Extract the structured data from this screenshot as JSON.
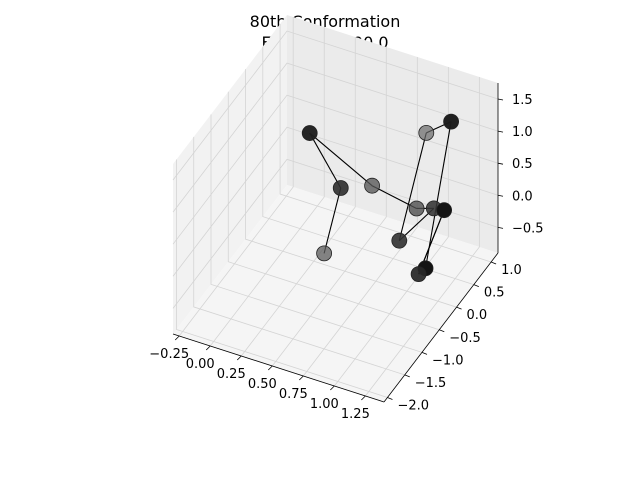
{
  "chart_data": {
    "type": "scatter",
    "projection": "3d",
    "title": "80th Conformation",
    "subtitle": "Energy: -1000.0",
    "grid": true,
    "x_ticks": [
      "−0.25",
      "0.00",
      "0.25",
      "0.50",
      "0.75",
      "1.00",
      "1.25"
    ],
    "y_ticks": [
      "−2.0",
      "−1.5",
      "−1.0",
      "−0.5",
      "0.0",
      "0.5",
      "1.0"
    ],
    "z_ticks": [
      "−0.5",
      "0.0",
      "0.5",
      "1.0",
      "1.5"
    ],
    "xlim": [
      -0.3,
      1.4
    ],
    "ylim": [
      -2.1,
      1.2
    ],
    "zlim": [
      -0.9,
      1.75
    ],
    "marker_color": "#000000",
    "line_color": "#000000",
    "points": [
      {
        "x": 0.5,
        "y": -0.6,
        "z": -0.2,
        "shade": 0.45
      },
      {
        "x": 0.3,
        "y": 0.6,
        "z": -0.15,
        "shade": 0.8
      },
      {
        "x": 0.05,
        "y": 0.6,
        "z": 0.55,
        "shade": 0.92
      },
      {
        "x": 0.65,
        "y": 0.25,
        "z": 0.35,
        "shade": 0.5
      },
      {
        "x": 1.05,
        "y": 0.1,
        "z": 0.35,
        "shade": 0.55
      },
      {
        "x": 1.05,
        "y": 0.6,
        "z": 0.0,
        "shade": 0.75
      },
      {
        "x": 1.05,
        "y": -0.4,
        "z": 0.2,
        "shade": 0.78
      },
      {
        "x": 0.85,
        "y": 1.1,
        "z": 0.7,
        "shade": 0.35
      },
      {
        "x": 1.05,
        "y": 1.1,
        "z": 1.0,
        "shade": 0.95
      },
      {
        "x": 1.15,
        "y": 0.0,
        "z": -0.45,
        "shade": 1.0
      },
      {
        "x": 1.15,
        "y": -0.2,
        "z": -0.4,
        "shade": 0.85
      },
      {
        "x": 1.3,
        "y": 0.0,
        "z": 0.55,
        "shade": 1.0
      }
    ],
    "bonds": [
      [
        0,
        1
      ],
      [
        1,
        2
      ],
      [
        2,
        3
      ],
      [
        3,
        4
      ],
      [
        4,
        5
      ],
      [
        5,
        6
      ],
      [
        6,
        7
      ],
      [
        7,
        8
      ],
      [
        8,
        9
      ],
      [
        9,
        10
      ],
      [
        10,
        11
      ],
      [
        11,
        10
      ]
    ]
  }
}
